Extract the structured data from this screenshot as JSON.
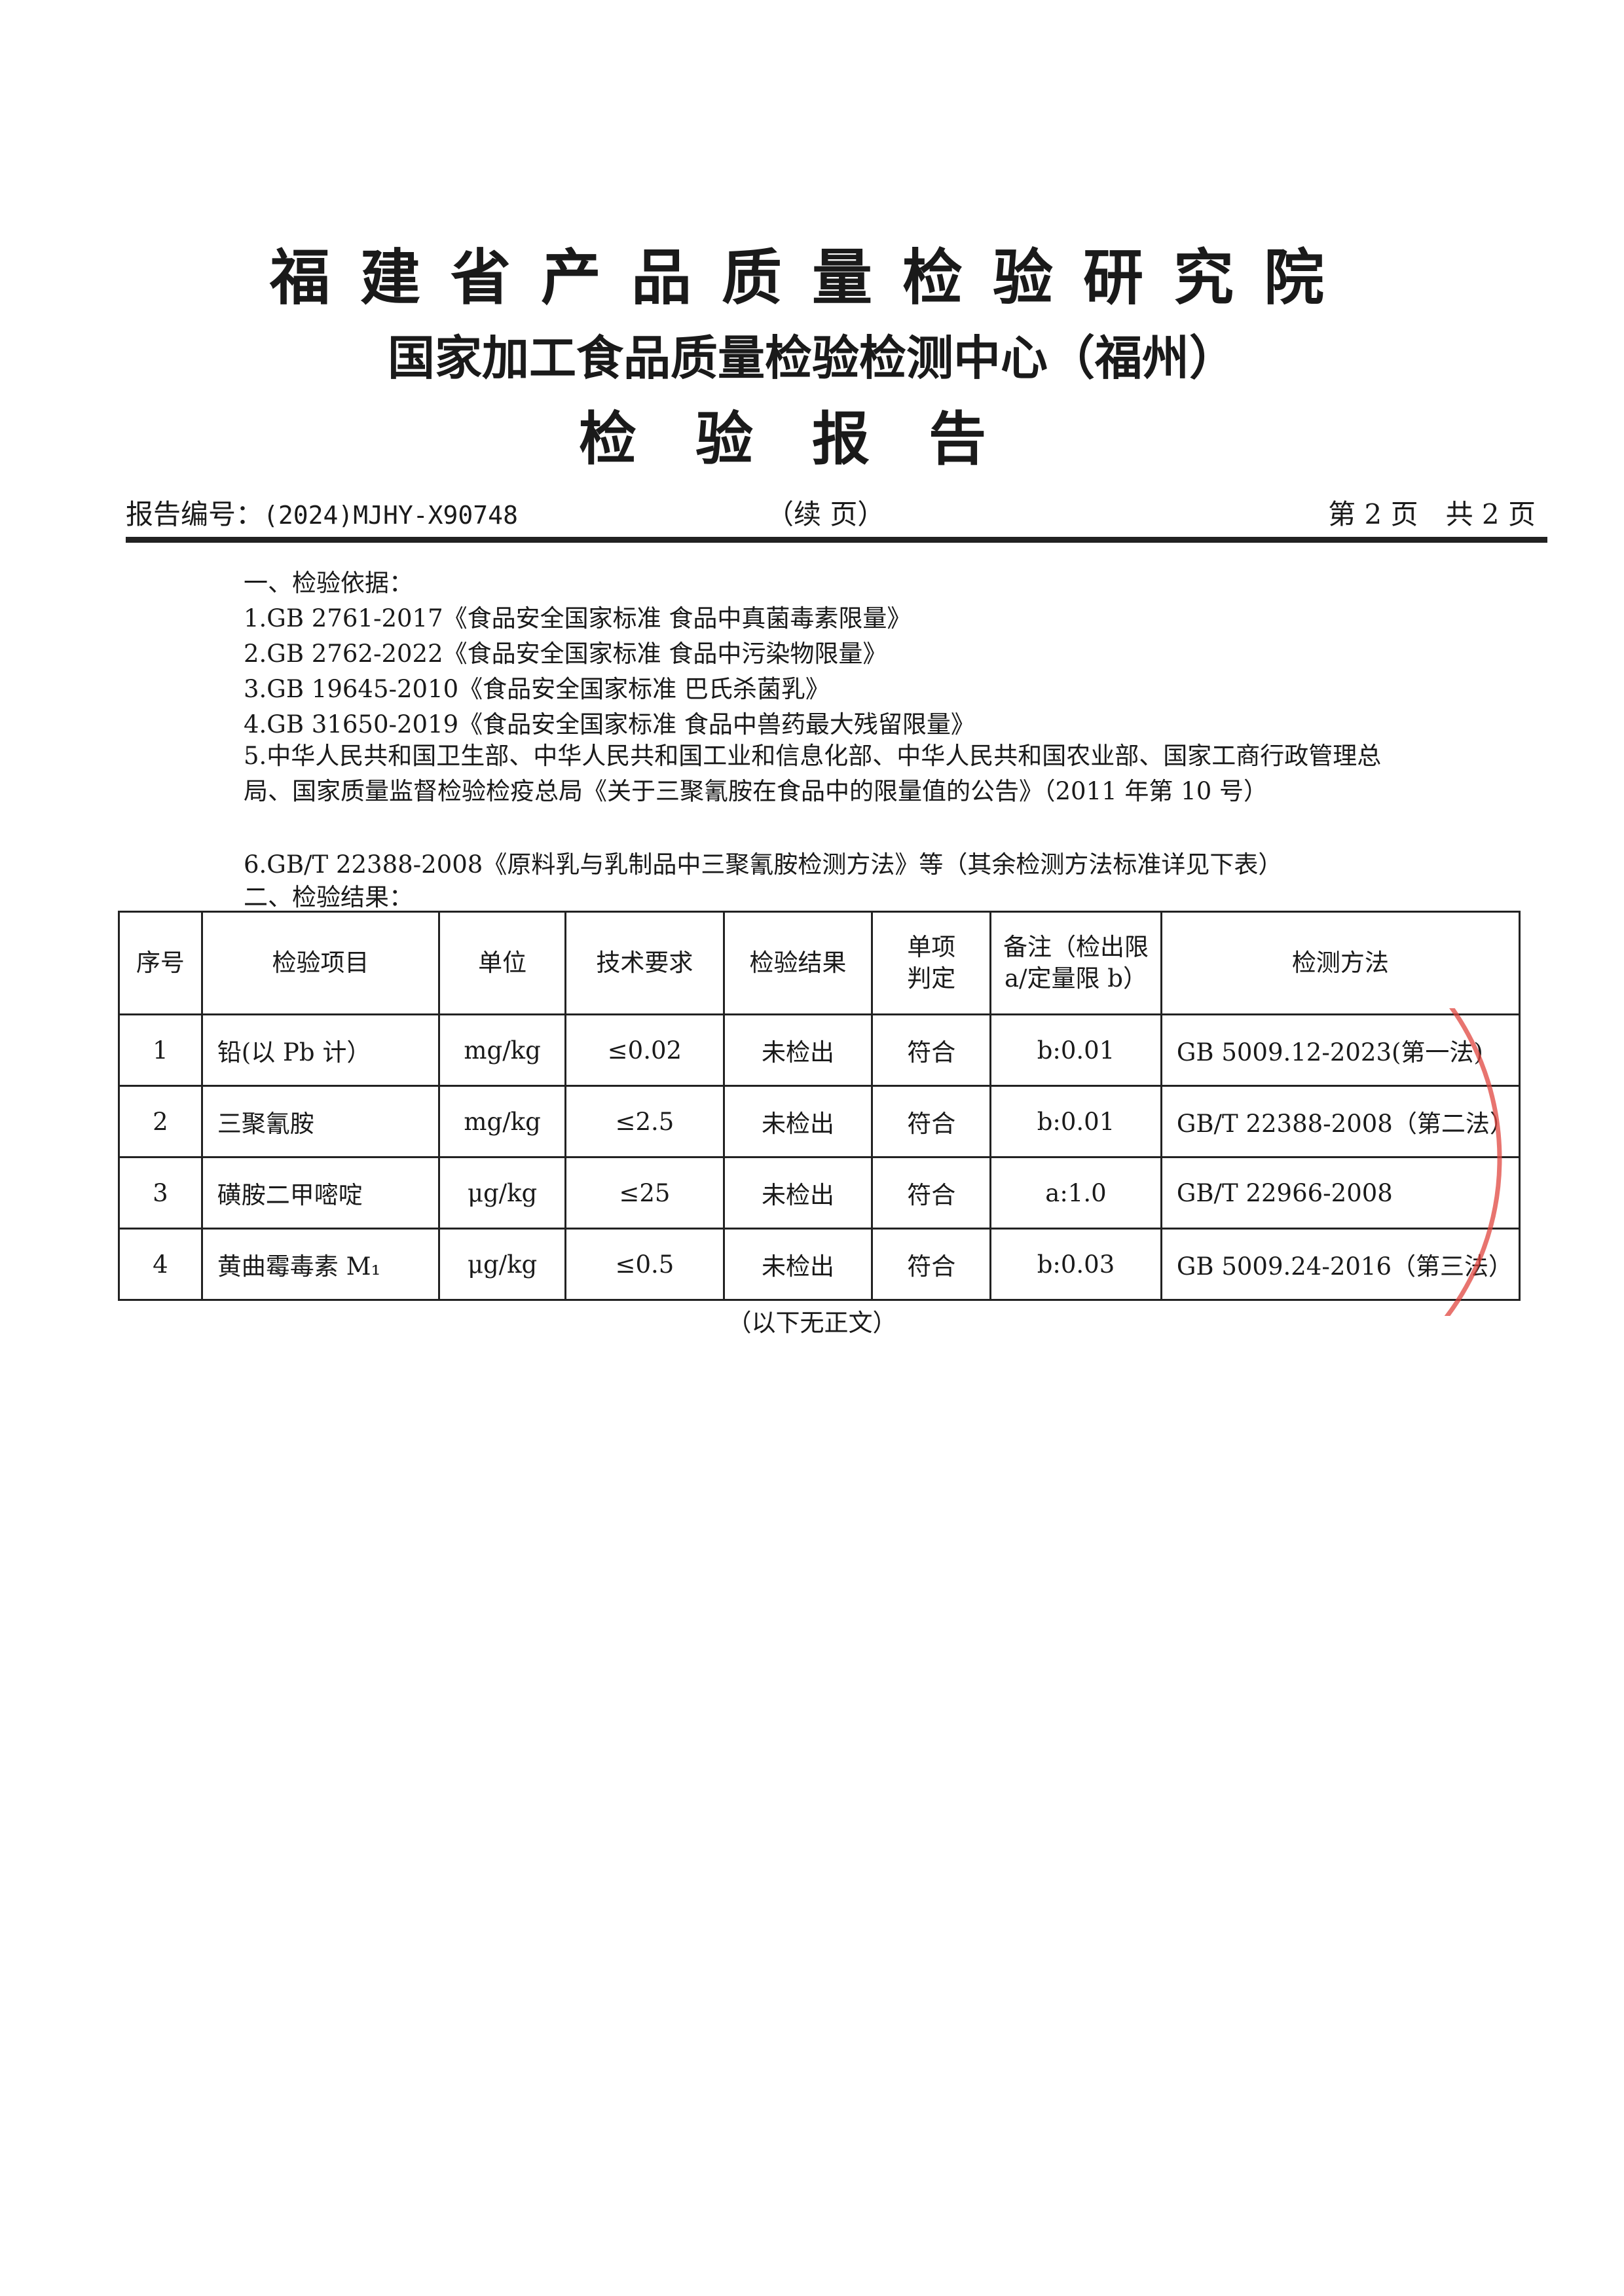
{
  "header": {
    "title_line1": "福建省产品质量检验研究院",
    "title_line2": "国家加工食品质量检验检测中心（福州）",
    "title_line3": "检验报告",
    "report_no_label": "报告编号：",
    "report_no": "(2024)MJHY-X90748",
    "continued": "（续 页）",
    "page_info": "第 2 页　共 2 页"
  },
  "basis": {
    "heading": "一、检验依据：",
    "items": [
      "1.GB 2761-2017《食品安全国家标准  食品中真菌毒素限量》",
      "2.GB 2762-2022《食品安全国家标准  食品中污染物限量》",
      "3.GB 19645-2010《食品安全国家标准  巴氏杀菌乳》",
      "4.GB 31650-2019《食品安全国家标准  食品中兽药最大残留限量》",
      "5.中华人民共和国卫生部、中华人民共和国工业和信息化部、中华人民共和国农业部、国家工商行政管理总局、国家质量监督检验检疫总局《关于三聚氰胺在食品中的限量值的公告》（2011 年第 10 号）",
      "6.GB/T 22388-2008《原料乳与乳制品中三聚氰胺检测方法》等（其余检测方法标准详见下表）"
    ]
  },
  "results": {
    "heading": "二、检验结果：",
    "columns": [
      "序号",
      "检验项目",
      "单位",
      "技术要求",
      "检验结果",
      "单项判定",
      "备注（检出限 a/定量限 b）",
      "检测方法"
    ],
    "rows": [
      [
        "1",
        "铅(以 Pb 计）",
        "mg/kg",
        "≤0.02",
        "未检出",
        "符合",
        "b:0.01",
        "GB 5009.12-2023(第一法)"
      ],
      [
        "2",
        "三聚氰胺",
        "mg/kg",
        "≤2.5",
        "未检出",
        "符合",
        "b:0.01",
        "GB/T 22388-2008（第二法）"
      ],
      [
        "3",
        "磺胺二甲嘧啶",
        "μg/kg",
        "≤25",
        "未检出",
        "符合",
        "a:1.0",
        "GB/T 22966-2008"
      ],
      [
        "4",
        "黄曲霉毒素 M₁",
        "μg/kg",
        "≤0.5",
        "未检出",
        "符合",
        "b:0.03",
        "GB 5009.24-2016（第三法）"
      ]
    ]
  },
  "footer": "（以下无正文）",
  "colors": {
    "stamp": "#e0453f",
    "text": "#1a1a1a"
  }
}
